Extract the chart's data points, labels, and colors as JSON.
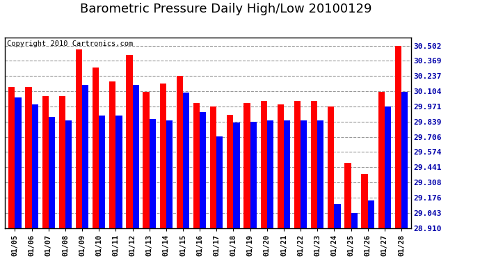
{
  "title": "Barometric Pressure Daily High/Low 20100129",
  "copyright": "Copyright 2010 Cartronics.com",
  "dates": [
    "01/05",
    "01/06",
    "01/07",
    "01/08",
    "01/09",
    "01/10",
    "01/11",
    "01/12",
    "01/13",
    "01/14",
    "01/15",
    "01/16",
    "01/17",
    "01/18",
    "01/19",
    "01/20",
    "01/21",
    "01/22",
    "01/23",
    "01/24",
    "01/25",
    "01/26",
    "01/27",
    "01/28"
  ],
  "highs": [
    30.14,
    30.14,
    30.06,
    30.06,
    30.47,
    30.31,
    30.19,
    30.42,
    30.1,
    30.17,
    30.24,
    30.0,
    29.97,
    29.9,
    30.0,
    30.02,
    29.99,
    30.02,
    30.02,
    29.97,
    29.48,
    29.38,
    30.1,
    30.5
  ],
  "lows": [
    30.05,
    29.99,
    29.88,
    29.85,
    30.16,
    29.89,
    29.89,
    30.16,
    29.86,
    29.85,
    30.09,
    29.92,
    29.71,
    29.83,
    29.84,
    29.85,
    29.85,
    29.85,
    29.85,
    29.12,
    29.04,
    29.15,
    29.97,
    30.1
  ],
  "yticks": [
    28.91,
    29.043,
    29.176,
    29.308,
    29.441,
    29.574,
    29.706,
    29.839,
    29.971,
    30.104,
    30.237,
    30.369,
    30.502
  ],
  "ymin": 28.91,
  "ymax": 30.57,
  "high_color": "#FF0000",
  "low_color": "#0000FF",
  "bg_color": "#FFFFFF",
  "grid_color": "#999999",
  "bar_width": 0.38,
  "title_fontsize": 13,
  "copyright_fontsize": 7.5
}
